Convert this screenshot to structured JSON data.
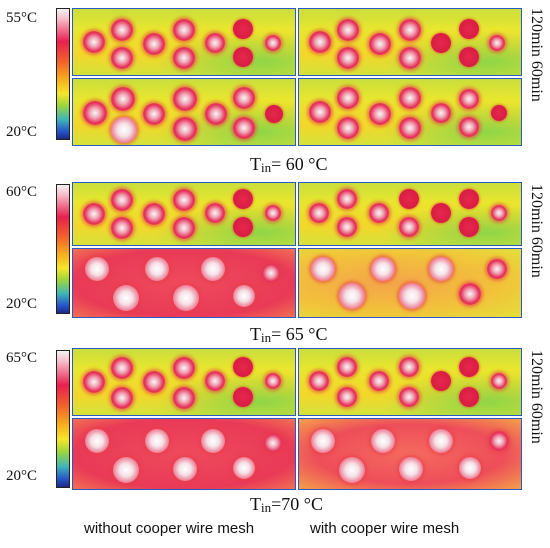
{
  "sections": [
    {
      "top_label": "55°C",
      "bottom_label": "20°C",
      "tin_prefix": "T",
      "tin_sub": "in",
      "tin_value": "= 60 °C",
      "side_label": "120min 60min"
    },
    {
      "top_label": "60°C",
      "bottom_label": "20°C",
      "tin_prefix": "T",
      "tin_sub": "in",
      "tin_value": "= 65 °C",
      "side_label": "120min 60min"
    },
    {
      "top_label": "65°C",
      "bottom_label": "20°C",
      "tin_prefix": "T",
      "tin_sub": "in",
      "tin_value": "=70 °C",
      "side_label": "120min 60min"
    }
  ],
  "footer": {
    "left": "without cooper wire mesh",
    "right": "with cooper wire mesh"
  },
  "colors": {
    "frame_blue": "#2b59c3",
    "background_yellow": "#f3d72a",
    "spot_red": "#e6305a"
  }
}
